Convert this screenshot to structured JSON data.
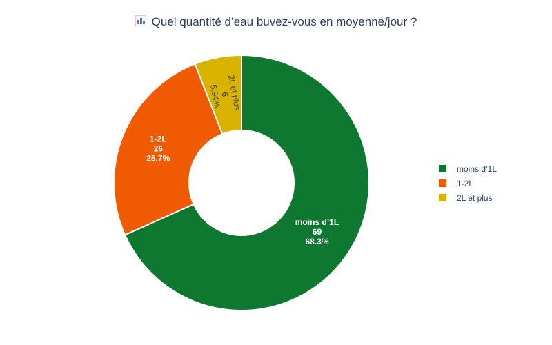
{
  "title": "Quel quantité d’eau buvez-vous en moyenne/jour ?",
  "title_icon": "bar-chart-emoji-icon",
  "chart_data": {
    "type": "pie",
    "hole": true,
    "title": "Quel quantité d’eau buvez-vous en moyenne/jour ?",
    "categories": [
      "moins d’1L",
      "1-2L",
      "2L et plus"
    ],
    "values": [
      69,
      26,
      6
    ],
    "percents": [
      "68.3%",
      "25.7%",
      "5.94%"
    ],
    "colors": [
      "#0e7730",
      "#f05a02",
      "#d9b300"
    ],
    "label_colors": [
      "#ffffff",
      "#ffffff",
      "#444444"
    ],
    "legend_position": "right"
  }
}
